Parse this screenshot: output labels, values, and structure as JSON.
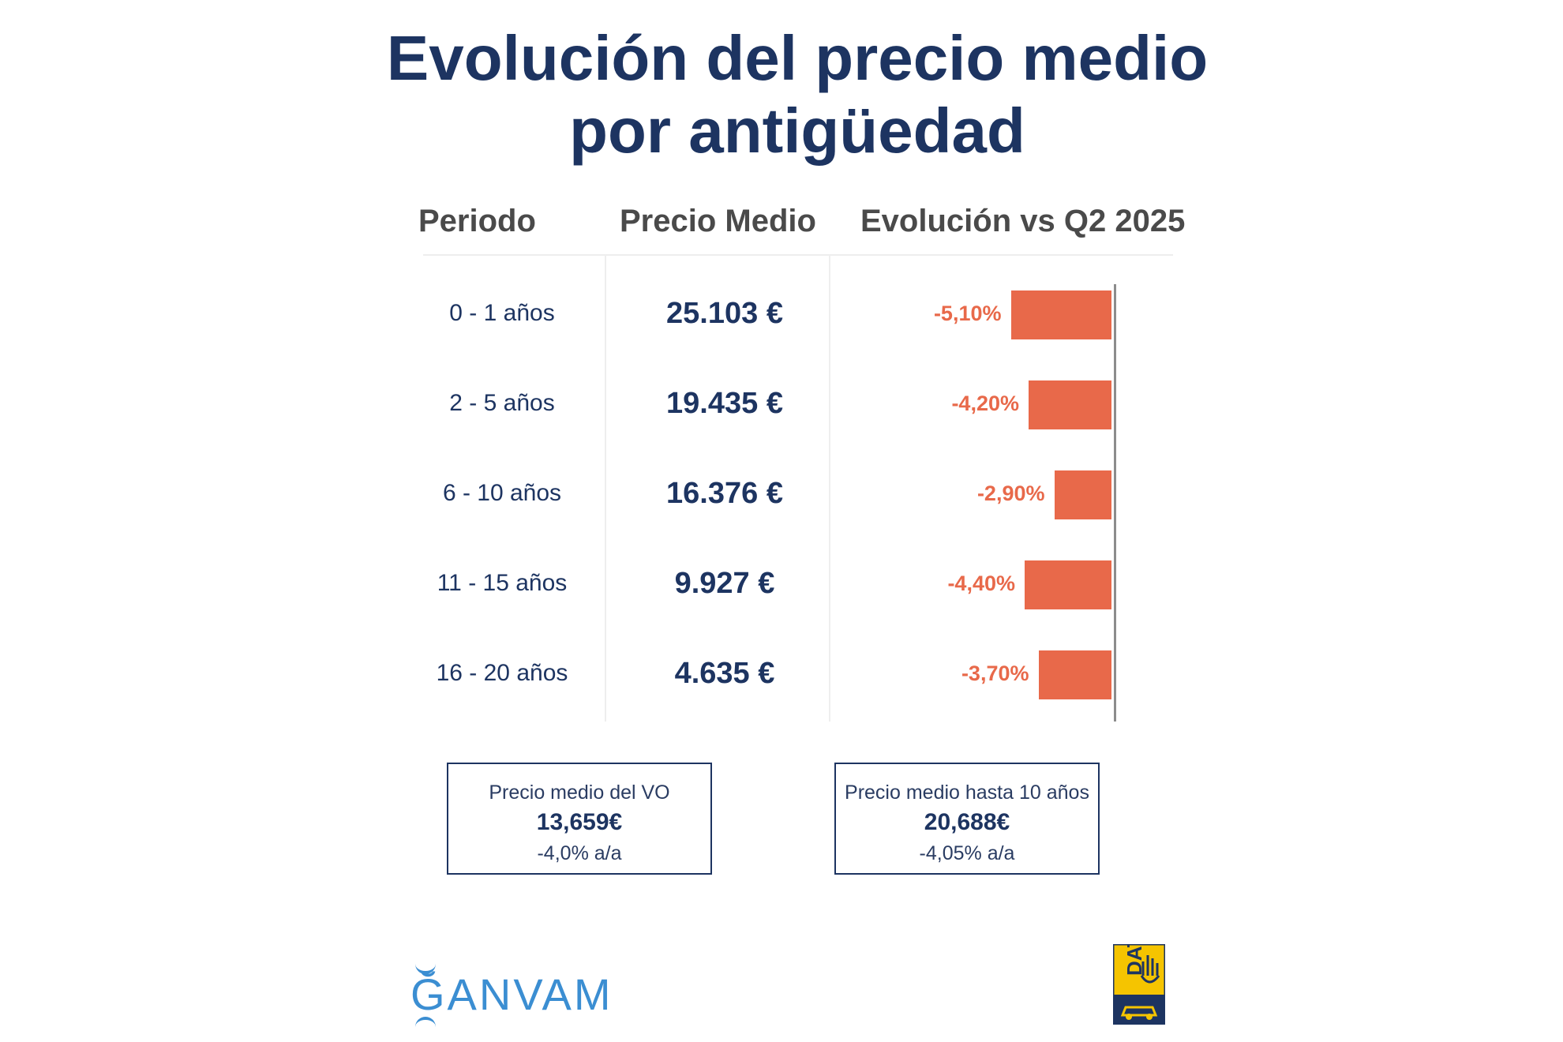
{
  "title_line1": "Evolución del precio medio",
  "title_line2": "por antigüedad",
  "headers": {
    "periodo": "Periodo",
    "precio": "Precio Medio",
    "evolucion": "Evolución vs Q2 2025"
  },
  "chart_data": {
    "type": "table",
    "columns": [
      "Periodo",
      "Precio Medio",
      "Evolución vs Q2 2025"
    ],
    "rows": [
      {
        "periodo": "0 - 1 años",
        "precio": "25.103 €",
        "evolucion_label": "-5,10%",
        "evolucion": -5.1
      },
      {
        "periodo": "2 - 5 años",
        "precio": "19.435 €",
        "evolucion_label": "-4,20%",
        "evolucion": -4.2
      },
      {
        "periodo": "6 - 10 años",
        "precio": "16.376 €",
        "evolucion_label": "-2,90%",
        "evolucion": -2.9
      },
      {
        "periodo": "11 - 15 años",
        "precio": "9.927 €",
        "evolucion_label": "-4,40%",
        "evolucion": -4.4
      },
      {
        "periodo": "16 - 20 años",
        "precio": "4.635 €",
        "evolucion_label": "-3,70%",
        "evolucion": -3.7
      }
    ],
    "bar_color": "#e8694a"
  },
  "summary": {
    "vo": {
      "label": "Precio medio del VO",
      "value": "13,659€",
      "change": "-4,0% a/a"
    },
    "hasta10": {
      "label": "Precio medio hasta 10 años",
      "value": "20,688€",
      "change": "-4,05% a/a"
    }
  },
  "logos": {
    "ganvam": "ĞANVAM",
    "dat": "DAT"
  },
  "colors": {
    "navy": "#1d3461",
    "accent": "#e8694a",
    "ganvam_blue": "#3b8ed2",
    "dat_yellow": "#f5c400"
  }
}
